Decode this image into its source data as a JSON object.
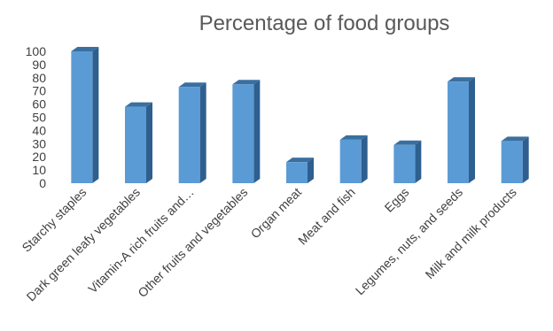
{
  "chart_data": {
    "type": "bar",
    "title": "Percentage of food groups",
    "xlabel": "",
    "ylabel": "",
    "ylim": [
      0,
      100
    ],
    "yticks": [
      0,
      10,
      20,
      30,
      40,
      50,
      60,
      70,
      80,
      90,
      100
    ],
    "grid": false,
    "legend": "none",
    "style": "3d-column",
    "colors": {
      "front": "#5b9bd5",
      "side": "#2e5f8e",
      "top": "#3a6f9f"
    },
    "categories": [
      "Starchy staples",
      "Dark green leafy vegetables",
      "Vitamin-A rich fruits and…",
      "Other fruits and vegetables",
      "Organ meat",
      "Meat and fish",
      "Eggs",
      "Legumes, nuts, and seeds",
      "Milk and milk products"
    ],
    "values": [
      100,
      58,
      73,
      75,
      16,
      33,
      29,
      77,
      32
    ]
  }
}
